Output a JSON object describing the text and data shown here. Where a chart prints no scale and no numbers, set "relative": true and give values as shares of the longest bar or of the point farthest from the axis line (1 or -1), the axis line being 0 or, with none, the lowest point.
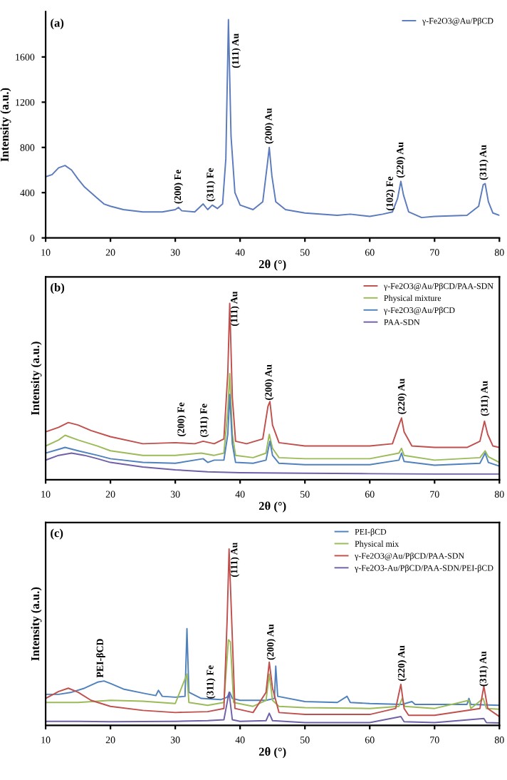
{
  "chart_data": [
    {
      "type": "line",
      "title": "(a)",
      "xlabel": "2θ (°)",
      "ylabel": "Intensity (a.u.)",
      "xlim": [
        10,
        80
      ],
      "xticks": [
        10,
        20,
        30,
        40,
        50,
        60,
        70,
        80
      ],
      "ylim": [
        0,
        2000
      ],
      "yticks": [
        0,
        400,
        800,
        1200,
        1600
      ],
      "legend": "top right",
      "grid": false,
      "series": [
        {
          "name": "γ-Fe2O3@Au/PβCD",
          "color": "#5b7bbd",
          "x": [
            10,
            11,
            12,
            13,
            14,
            15,
            16,
            17,
            18,
            19,
            20,
            22,
            25,
            28,
            30,
            30.5,
            31,
            33,
            34.3,
            35,
            35.7,
            36.5,
            37.3,
            37.8,
            38.2,
            38.6,
            39.2,
            40,
            42,
            43.5,
            44.2,
            44.5,
            44.9,
            45.5,
            47,
            50,
            55,
            57,
            60,
            62,
            63.5,
            64.3,
            64.8,
            65.2,
            66,
            68,
            70,
            75,
            76.8,
            77.5,
            77.8,
            78.3,
            79,
            80
          ],
          "values": [
            540,
            560,
            620,
            640,
            600,
            520,
            450,
            400,
            350,
            300,
            280,
            250,
            230,
            230,
            250,
            270,
            240,
            230,
            300,
            250,
            290,
            260,
            300,
            700,
            1930,
            900,
            400,
            290,
            250,
            320,
            650,
            800,
            550,
            320,
            250,
            220,
            200,
            210,
            190,
            210,
            230,
            350,
            500,
            380,
            230,
            180,
            190,
            200,
            280,
            470,
            480,
            320,
            220,
            200
          ]
        }
      ],
      "annotations": [
        {
          "text": "(200) Fe",
          "x": 30.5,
          "y": 300
        },
        {
          "text": "(311) Fe",
          "x": 35.5,
          "y": 320
        },
        {
          "text": "(111) Au",
          "x": 39.4,
          "y": 1500
        },
        {
          "text": "(200) Au",
          "x": 44.5,
          "y": 830
        },
        {
          "text": "(102) Fe",
          "x": 63.2,
          "y": 240
        },
        {
          "text": "(220) Au",
          "x": 64.8,
          "y": 530
        },
        {
          "text": "(311) Au",
          "x": 77.6,
          "y": 510
        }
      ]
    },
    {
      "type": "line",
      "title": "(b)",
      "xlabel": "2θ (°)",
      "ylabel": "Intensity (a.u.)",
      "xlim": [
        10,
        80
      ],
      "xticks": [
        10,
        20,
        30,
        40,
        50,
        60,
        70,
        80
      ],
      "relative": true,
      "legend": "top right",
      "grid": false,
      "series": [
        {
          "name": "γ-Fe2O3@Au/PβCD/PAA-SDN",
          "color": "#c0504d",
          "x": [
            10,
            12,
            13.5,
            15,
            17,
            20,
            25,
            30,
            33,
            34.3,
            36,
            37.5,
            38.1,
            38.4,
            38.8,
            39.3,
            41,
            43.5,
            44.3,
            44.6,
            45,
            46,
            50,
            55,
            60,
            63.5,
            64.5,
            64.9,
            65.3,
            66.5,
            70,
            75,
            77,
            77.7,
            78.2,
            79,
            80
          ],
          "values": [
            0.271,
            0.297,
            0.324,
            0.31,
            0.279,
            0.244,
            0.204,
            0.21,
            0.204,
            0.218,
            0.204,
            0.231,
            0.602,
            1,
            0.469,
            0.218,
            0.204,
            0.231,
            0.416,
            0.443,
            0.31,
            0.21,
            0.191,
            0.191,
            0.191,
            0.204,
            0.31,
            0.35,
            0.271,
            0.191,
            0.183,
            0.183,
            0.218,
            0.332,
            0.257,
            0.191,
            0.183
          ]
        },
        {
          "name": "Physical mixture",
          "color": "#9bbb59",
          "x": [
            10,
            12,
            13,
            15,
            18,
            20,
            25,
            30,
            34,
            36,
            37.5,
            38.1,
            38.4,
            38.8,
            39.3,
            42,
            44,
            44.5,
            45,
            46,
            50,
            60,
            64.5,
            64.9,
            65.3,
            70,
            77,
            77.8,
            78.3,
            80
          ],
          "values": [
            0.191,
            0.225,
            0.252,
            0.225,
            0.191,
            0.164,
            0.138,
            0.138,
            0.151,
            0.138,
            0.151,
            0.39,
            0.602,
            0.257,
            0.138,
            0.125,
            0.151,
            0.257,
            0.178,
            0.125,
            0.119,
            0.119,
            0.151,
            0.178,
            0.138,
            0.111,
            0.125,
            0.164,
            0.13,
            0.098
          ]
        },
        {
          "name": "γ-Fe2O3@Au/PβCD",
          "color": "#4f81bd",
          "x": [
            10,
            12,
            13,
            15,
            18,
            20,
            25,
            30,
            34.3,
            35,
            36,
            37.5,
            38.1,
            38.4,
            38.8,
            39.3,
            42,
            44,
            44.6,
            45,
            46,
            50,
            60,
            64.5,
            64.9,
            65.3,
            70,
            77,
            77.8,
            78.3,
            80
          ],
          "values": [
            0.151,
            0.172,
            0.183,
            0.164,
            0.138,
            0.119,
            0.098,
            0.093,
            0.119,
            0.098,
            0.111,
            0.111,
            0.257,
            0.483,
            0.204,
            0.098,
            0.093,
            0.111,
            0.218,
            0.138,
            0.093,
            0.085,
            0.085,
            0.111,
            0.151,
            0.103,
            0.082,
            0.093,
            0.151,
            0.098,
            0.077
          ]
        },
        {
          "name": "PAA-SDN",
          "color": "#7060a8",
          "x": [
            10,
            12,
            14,
            16,
            18,
            20,
            25,
            30,
            35,
            40,
            50,
            60,
            70,
            80
          ],
          "values": [
            0.111,
            0.138,
            0.151,
            0.138,
            0.119,
            0.098,
            0.072,
            0.056,
            0.045,
            0.04,
            0.037,
            0.034,
            0.032,
            0.032
          ]
        }
      ],
      "annotations": [
        {
          "text": "(200) Fe",
          "x": 31,
          "y": 0.244
        },
        {
          "text": "(311) Fe",
          "x": 34.5,
          "y": 0.24
        },
        {
          "text": "(111) Au",
          "x": 39.2,
          "y": 0.87
        },
        {
          "text": "(200) Au",
          "x": 44.5,
          "y": 0.45
        },
        {
          "text": "(220) Au",
          "x": 65,
          "y": 0.37
        },
        {
          "text": "(311) Au",
          "x": 77.8,
          "y": 0.36
        }
      ]
    },
    {
      "type": "line",
      "title": "(c)",
      "xlabel": "2θ (°)",
      "ylabel": "Intensity (a.u.)",
      "xlim": [
        10,
        80
      ],
      "xticks": [
        10,
        20,
        30,
        40,
        50,
        60,
        70,
        80
      ],
      "relative": true,
      "legend": "top right",
      "grid": false,
      "series": [
        {
          "name": "PEI-βCD",
          "color": "#4f81bd",
          "x": [
            10,
            12,
            14,
            16,
            18,
            19,
            20,
            22,
            25,
            27,
            27.4,
            28,
            30,
            31.5,
            31.8,
            32.1,
            34,
            37,
            38,
            38.4,
            38.8,
            40,
            44,
            45.3,
            45.5,
            45.8,
            50,
            55,
            56.5,
            57,
            60,
            65,
            66.5,
            67,
            70,
            75,
            75.3,
            75.6,
            80
          ],
          "values": [
            0.176,
            0.176,
            0.188,
            0.211,
            0.245,
            0.252,
            0.238,
            0.206,
            0.183,
            0.169,
            0.199,
            0.165,
            0.16,
            0.165,
            0.549,
            0.188,
            0.153,
            0.146,
            0.16,
            0.188,
            0.153,
            0.142,
            0.142,
            0.153,
            0.336,
            0.165,
            0.135,
            0.13,
            0.165,
            0.13,
            0.124,
            0.119,
            0.135,
            0.119,
            0.119,
            0.119,
            0.153,
            0.119,
            0.114
          ]
        },
        {
          "name": "Physical mix",
          "color": "#9bbb59",
          "x": [
            10,
            15,
            18,
            20,
            25,
            30,
            31.8,
            32.1,
            35,
            37.5,
            38.2,
            38.5,
            39,
            42,
            44,
            44.5,
            45,
            46,
            50,
            60,
            64.5,
            65,
            65.4,
            70,
            75.3,
            75.6,
            77.5,
            78,
            80
          ],
          "values": [
            0.13,
            0.13,
            0.137,
            0.142,
            0.137,
            0.124,
            0.291,
            0.13,
            0.114,
            0.13,
            0.485,
            0.474,
            0.13,
            0.108,
            0.142,
            0.291,
            0.142,
            0.108,
            0.101,
            0.096,
            0.108,
            0.153,
            0.108,
            0.096,
            0.142,
            0.096,
            0.153,
            0.096,
            0.092
          ]
        },
        {
          "name": "γ-Fe2O3@Au/PβCD/PAA-SDN",
          "color": "#c0504d",
          "x": [
            10,
            12,
            13.5,
            15,
            17,
            20,
            25,
            30,
            35,
            37.5,
            38,
            38.3,
            38.7,
            39.2,
            42,
            44,
            44.5,
            45,
            46,
            50,
            60,
            64,
            64.8,
            65.3,
            66,
            70,
            77,
            77.6,
            78.2,
            80
          ],
          "values": [
            0.153,
            0.192,
            0.211,
            0.188,
            0.142,
            0.108,
            0.085,
            0.073,
            0.078,
            0.096,
            0.6,
            1,
            0.6,
            0.096,
            0.073,
            0.188,
            0.359,
            0.211,
            0.073,
            0.062,
            0.062,
            0.096,
            0.233,
            0.096,
            0.057,
            0.057,
            0.096,
            0.222,
            0.096,
            0.05
          ]
        },
        {
          "name": "γ-Fe2O3-Au/PβCD/PAA-SDN/PEI-βCD",
          "color": "#7060a8",
          "x": [
            10,
            15,
            20,
            30,
            35,
            37.5,
            38.3,
            38.8,
            40,
            44,
            44.5,
            45,
            50,
            60,
            64.8,
            65.3,
            70,
            77.6,
            78,
            80
          ],
          "values": [
            0.023,
            0.023,
            0.021,
            0.023,
            0.027,
            0.032,
            0.188,
            0.032,
            0.023,
            0.027,
            0.069,
            0.027,
            0.016,
            0.016,
            0.05,
            0.021,
            0.016,
            0.039,
            0.016,
            0.014
          ]
        }
      ],
      "annotations": [
        {
          "text": "PEI-βCD",
          "x": 18.5,
          "y": 0.27
        },
        {
          "text": "(311) Fe",
          "x": 35.5,
          "y": 0.15
        },
        {
          "text": "(111) Au",
          "x": 39.2,
          "y": 0.84
        },
        {
          "text": "(200) Au",
          "x": 44.8,
          "y": 0.37
        },
        {
          "text": "(220) Au",
          "x": 65,
          "y": 0.25
        },
        {
          "text": "(311) Au",
          "x": 77.6,
          "y": 0.22
        }
      ]
    }
  ]
}
